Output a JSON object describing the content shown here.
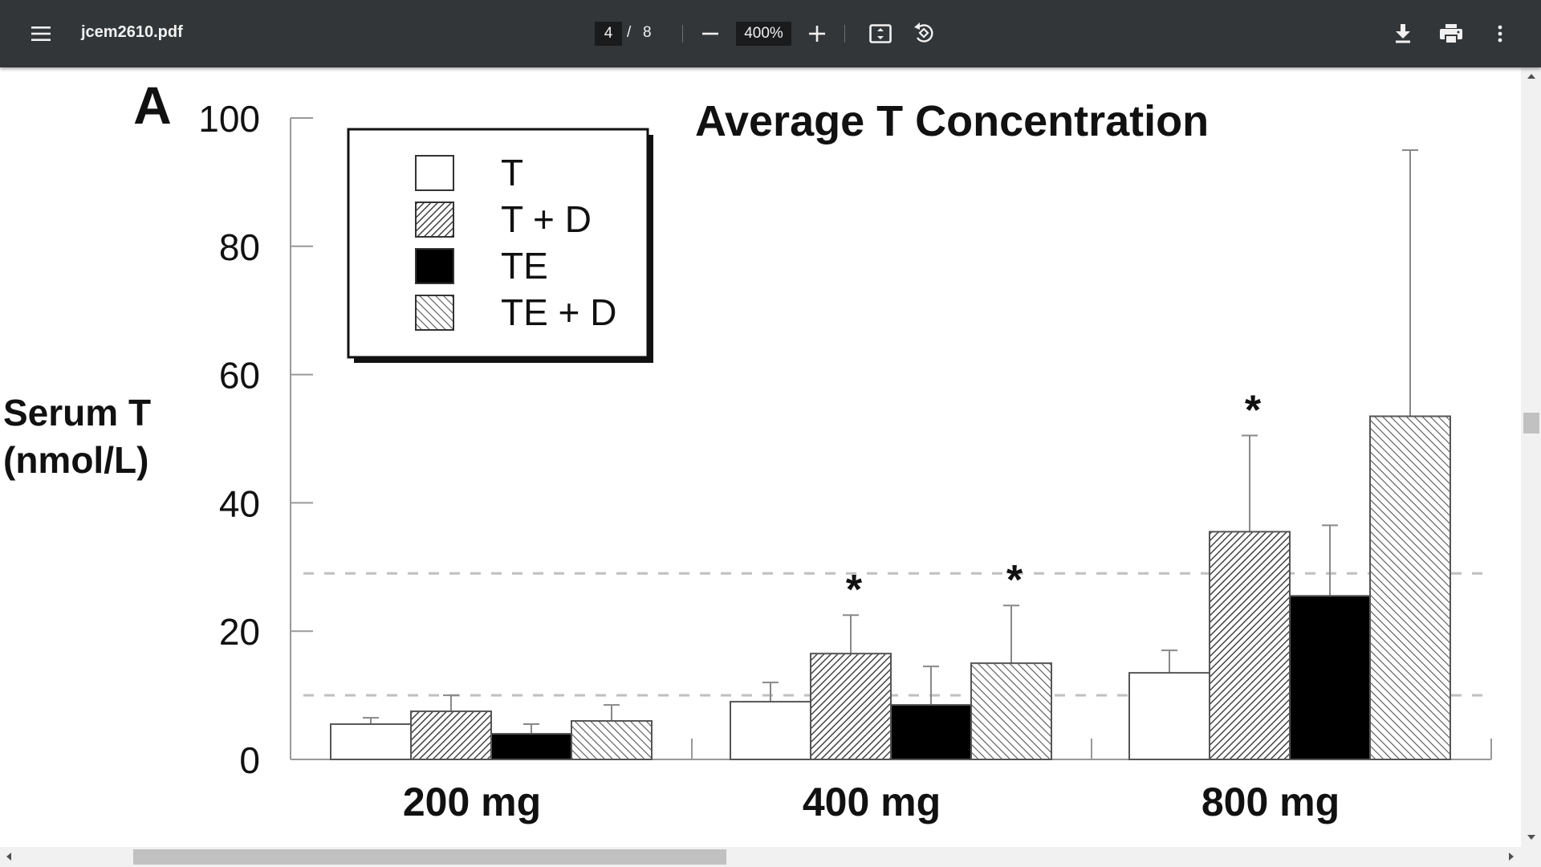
{
  "toolbar": {
    "file_name": "jcem2610.pdf",
    "current_page": "4",
    "page_separator": "/",
    "total_pages": "8",
    "zoom": "400%",
    "icons": [
      "menu-icon",
      "zoom-out-icon",
      "zoom-in-icon",
      "fit-page-icon",
      "rotate-icon",
      "download-icon",
      "print-icon",
      "more-icon"
    ]
  },
  "figure": {
    "panel_label": "A",
    "y_axis_label_line1": "Serum T",
    "y_axis_label_line2": "(nmol/L)",
    "asterisk": "*"
  },
  "chart_data": {
    "type": "bar",
    "title": "Average T Concentration",
    "xlabel": "",
    "ylabel": "Serum T (nmol/L)",
    "ylim": [
      0,
      100
    ],
    "yticks": [
      "0",
      "20",
      "40",
      "60",
      "80",
      "100"
    ],
    "categories": [
      "200 mg",
      "400 mg",
      "800 mg"
    ],
    "series": [
      {
        "name": "T",
        "pattern": "white",
        "values": [
          5.5,
          9,
          13.5
        ],
        "errors": [
          1,
          3,
          3.5
        ]
      },
      {
        "name": "T + D",
        "pattern": "hatch-dense",
        "values": [
          7.5,
          16.5,
          35.5
        ],
        "errors": [
          2.5,
          6,
          15
        ]
      },
      {
        "name": "TE",
        "pattern": "black",
        "values": [
          4,
          8.5,
          25.5
        ],
        "errors": [
          1.5,
          6,
          11
        ]
      },
      {
        "name": "TE + D",
        "pattern": "hatch-light",
        "values": [
          6,
          15,
          53.5
        ],
        "errors": [
          2.5,
          9,
          41.5
        ]
      }
    ],
    "significant": [
      [
        false,
        false,
        false,
        false
      ],
      [
        false,
        true,
        false,
        true
      ],
      [
        false,
        true,
        false,
        false
      ]
    ],
    "reference_lines": [
      10,
      29
    ],
    "legend_position": "top-left",
    "grid": false,
    "colors": {
      "bar_stroke": "#555555",
      "black_fill": "#000000",
      "reference_line": "#bfbfbf"
    }
  }
}
